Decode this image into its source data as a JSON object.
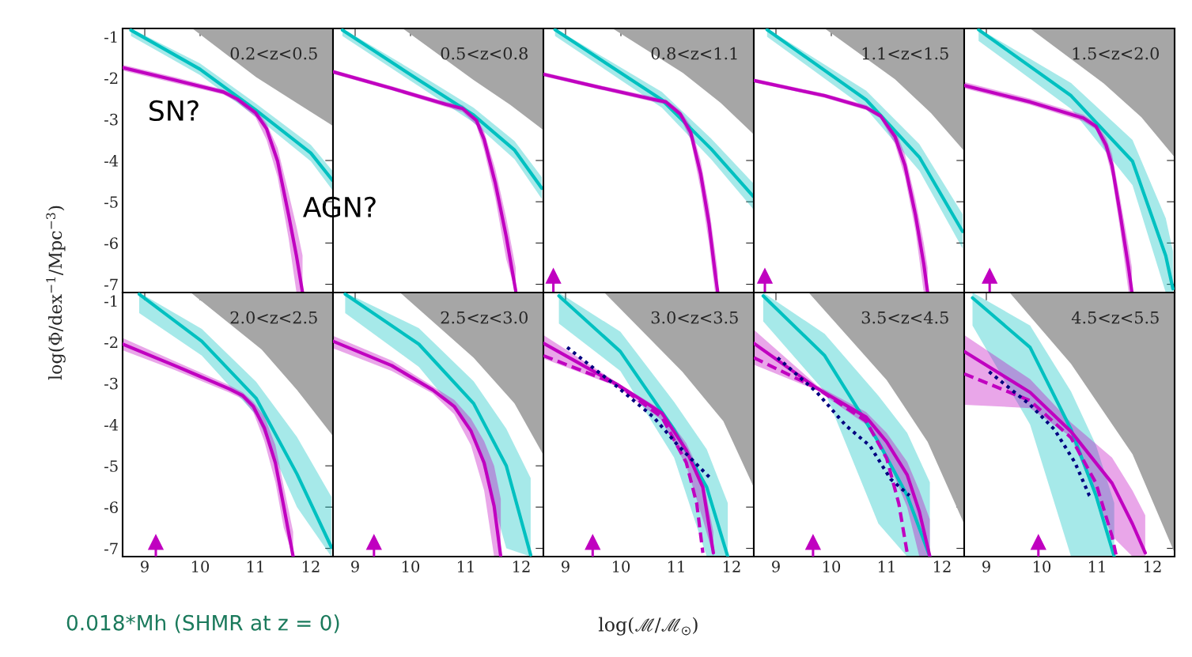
{
  "chart_data": [
    {
      "type": "line",
      "title": "0.2<z<0.5",
      "ylabel": "log(Φ/dex$^{−1}$/Mpc$^{−3}$)",
      "annotations": [
        "SN?",
        "AGN?",
        "0.018*Mh (SHMR at z = 0)"
      ],
      "xlim": [
        8.6,
        12.4
      ],
      "ylim": [
        -7.2,
        -0.8
      ],
      "xticks": [
        9,
        10,
        11,
        12
      ],
      "yticks": [
        -7,
        -6,
        -5,
        -4,
        -3,
        -2,
        -1
      ],
      "tick_labels": "y",
      "grid": false,
      "series": [
        {
          "type": "area",
          "color": "#a6a6a6",
          "x": [
            9.86,
            11.01,
            11.7,
            12.4
          ],
          "values": [
            -0.8,
            -1.98,
            -2.57,
            -3.16
          ]
        },
        {
          "type": "line",
          "color": "#00c0c0",
          "x": [
            8.75,
            10.0,
            11.0,
            12.0,
            12.39
          ],
          "values": [
            -0.84,
            -1.79,
            -2.77,
            -3.82,
            -4.48
          ],
          "lower": [
            -0.98,
            -1.93,
            -2.93,
            -4.02,
            -4.72
          ],
          "upper": [
            -0.8,
            -1.65,
            -2.61,
            -3.62,
            -4.25
          ]
        },
        {
          "type": "line",
          "color": "#c000c0",
          "x": [
            8.6,
            9.54,
            10.42,
            10.67,
            11.0,
            11.2,
            11.4,
            11.6,
            11.74,
            11.85
          ],
          "values": [
            -1.75,
            -2.05,
            -2.34,
            -2.51,
            -2.84,
            -3.23,
            -4.02,
            -5.33,
            -6.31,
            -7.2
          ],
          "lower": [
            -1.82,
            -2.12,
            -2.4,
            -2.58,
            -2.95,
            -3.5,
            -4.4,
            -5.9,
            -7.2,
            -7.2
          ],
          "upper": [
            -1.68,
            -1.98,
            -2.28,
            -2.44,
            -2.75,
            -3.1,
            -3.7,
            -4.8,
            -5.6,
            -6.3
          ]
        }
      ]
    },
    {
      "type": "line",
      "title": "0.5<z<0.8",
      "xlim": [
        8.6,
        12.4
      ],
      "ylim": [
        -7.2,
        -0.8
      ],
      "xticks": [
        9,
        10,
        11,
        12
      ],
      "yticks": [
        -7,
        -6,
        -5,
        -4,
        -3,
        -2,
        -1
      ],
      "tick_labels": false,
      "series": [
        {
          "type": "area",
          "color": "#a6a6a6",
          "x": [
            9.86,
            11.14,
            11.8,
            12.4
          ],
          "values": [
            -0.8,
            -2.05,
            -2.65,
            -3.26
          ]
        },
        {
          "type": "line",
          "color": "#00c0c0",
          "x": [
            8.77,
            10.15,
            11.14,
            11.88,
            12.37
          ],
          "values": [
            -0.84,
            -2.05,
            -2.9,
            -3.75,
            -4.67
          ],
          "lower": [
            -0.98,
            -2.2,
            -3.08,
            -3.97,
            -4.93
          ],
          "upper": [
            -0.8,
            -1.9,
            -2.72,
            -3.53,
            -4.4
          ]
        },
        {
          "type": "line",
          "color": "#c000c0",
          "x": [
            8.6,
            9.66,
            10.64,
            10.94,
            11.19,
            11.33,
            11.53,
            11.73,
            11.9
          ],
          "values": [
            -1.85,
            -2.25,
            -2.64,
            -2.74,
            -3.03,
            -3.49,
            -4.54,
            -5.85,
            -7.16
          ],
          "lower": [
            -1.9,
            -2.3,
            -2.7,
            -2.82,
            -3.15,
            -3.75,
            -4.9,
            -6.4,
            -7.2
          ],
          "upper": [
            -1.8,
            -2.2,
            -2.58,
            -2.66,
            -2.95,
            -3.3,
            -4.2,
            -5.4,
            -6.6
          ]
        }
      ]
    },
    {
      "type": "line",
      "title": "0.8<z<1.1",
      "xlim": [
        8.6,
        12.4
      ],
      "ylim": [
        -7.2,
        -0.8
      ],
      "xticks": [
        9,
        10,
        11,
        12
      ],
      "yticks": [
        -7,
        -6,
        -5,
        -4,
        -3,
        -2,
        -1
      ],
      "tick_labels": false,
      "series": [
        {
          "type": "area",
          "color": "#a6a6a6",
          "x": [
            9.85,
            11.12,
            11.8,
            12.4
          ],
          "values": [
            -0.8,
            -1.88,
            -2.6,
            -3.37
          ]
        },
        {
          "type": "line",
          "color": "#00c0c0",
          "x": [
            8.81,
            10.74,
            11.63,
            12.39
          ],
          "values": [
            -0.83,
            -2.53,
            -3.72,
            -4.87
          ],
          "lower": [
            -0.98,
            -2.72,
            -3.97,
            -5.18
          ],
          "upper": [
            -0.8,
            -2.34,
            -3.47,
            -4.55
          ]
        },
        {
          "type": "line",
          "color": "#c000c0",
          "x": [
            8.6,
            9.62,
            10.52,
            10.81,
            11.07,
            11.26,
            11.44,
            11.59,
            11.7,
            11.75
          ],
          "values": [
            -1.91,
            -2.23,
            -2.5,
            -2.58,
            -2.87,
            -3.32,
            -4.32,
            -5.52,
            -6.71,
            -7.2
          ],
          "lower": [
            -1.96,
            -2.28,
            -2.56,
            -2.64,
            -2.95,
            -3.5,
            -4.7,
            -6.0,
            -7.2,
            -7.2
          ],
          "upper": [
            -1.86,
            -2.18,
            -2.44,
            -2.52,
            -2.79,
            -3.15,
            -4.0,
            -5.1,
            -6.2,
            -6.7
          ]
        },
        {
          "type": "scatter",
          "color": "#c000c0",
          "marker": "triangle",
          "x": [
            8.78
          ],
          "values": [
            -6.8
          ],
          "errors": [
            [
              -7.2,
              -6.8
            ]
          ]
        }
      ]
    },
    {
      "type": "line",
      "title": "1.1<z<1.5",
      "xlim": [
        8.6,
        12.4
      ],
      "ylim": [
        -7.2,
        -0.8
      ],
      "xticks": [
        9,
        10,
        11,
        12
      ],
      "yticks": [
        -7,
        -6,
        -5,
        -4,
        -3,
        -2,
        -1
      ],
      "tick_labels": false,
      "series": [
        {
          "type": "area",
          "color": "#a6a6a6",
          "x": [
            9.88,
            11.15,
            11.8,
            12.4
          ],
          "values": [
            -0.8,
            -2.03,
            -2.85,
            -3.77
          ]
        },
        {
          "type": "line",
          "color": "#00c0c0",
          "x": [
            8.84,
            10.63,
            11.59,
            12.37
          ],
          "values": [
            -0.83,
            -2.53,
            -3.92,
            -5.72
          ],
          "lower": [
            -1.0,
            -2.75,
            -4.25,
            -6.13
          ],
          "upper": [
            -0.8,
            -2.31,
            -3.6,
            -5.3
          ]
        },
        {
          "type": "line",
          "color": "#c000c0",
          "x": [
            8.6,
            9.88,
            10.63,
            10.89,
            11.15,
            11.33,
            11.52,
            11.67,
            11.74
          ],
          "values": [
            -2.06,
            -2.43,
            -2.72,
            -2.92,
            -3.42,
            -4.12,
            -5.32,
            -6.51,
            -7.2
          ],
          "lower": [
            -2.11,
            -2.48,
            -2.78,
            -2.98,
            -3.6,
            -4.4,
            -5.7,
            -7.2,
            -7.2
          ],
          "upper": [
            -2.01,
            -2.38,
            -2.66,
            -2.86,
            -3.25,
            -3.85,
            -4.95,
            -6.0,
            -6.6
          ]
        },
        {
          "type": "scatter",
          "color": "#c000c0",
          "marker": "triangle",
          "x": [
            8.8
          ],
          "values": [
            -6.8
          ],
          "errors": [
            [
              -7.2,
              -6.8
            ]
          ]
        }
      ]
    },
    {
      "type": "line",
      "title": "1.5<z<2.0",
      "xlim": [
        8.6,
        12.4
      ],
      "ylim": [
        -7.2,
        -0.8
      ],
      "xticks": [
        9,
        10,
        11,
        12
      ],
      "yticks": [
        -7,
        -6,
        -5,
        -4,
        -3,
        -2,
        -1
      ],
      "tick_labels": false,
      "series": [
        {
          "type": "area",
          "color": "#a6a6a6",
          "x": [
            9.79,
            11.12,
            11.8,
            12.4
          ],
          "values": [
            -0.8,
            -2.13,
            -2.95,
            -3.92
          ]
        },
        {
          "type": "line",
          "color": "#00c0c0",
          "x": [
            8.86,
            10.53,
            11.64,
            12.24,
            12.37
          ],
          "values": [
            -0.83,
            -2.43,
            -4.02,
            -6.31,
            -7.11
          ],
          "lower": [
            -1.1,
            -2.75,
            -4.6,
            -7.2,
            -7.2
          ],
          "upper": [
            -0.8,
            -2.12,
            -3.5,
            -5.4,
            -6.2
          ]
        },
        {
          "type": "line",
          "color": "#c000c0",
          "x": [
            8.6,
            9.79,
            10.75,
            10.98,
            11.16,
            11.27,
            11.42,
            11.57,
            11.63
          ],
          "values": [
            -2.18,
            -2.58,
            -2.97,
            -3.17,
            -3.62,
            -4.12,
            -5.32,
            -6.61,
            -7.2
          ],
          "lower": [
            -2.25,
            -2.65,
            -3.05,
            -3.25,
            -3.8,
            -4.4,
            -5.7,
            -7.2,
            -7.2
          ],
          "upper": [
            -2.1,
            -2.5,
            -2.89,
            -3.09,
            -3.45,
            -3.85,
            -4.95,
            -6.1,
            -6.6
          ]
        },
        {
          "type": "scatter",
          "color": "#c000c0",
          "marker": "triangle",
          "x": [
            9.06
          ],
          "values": [
            -6.8
          ],
          "errors": [
            [
              -7.2,
              -6.8
            ]
          ]
        }
      ]
    },
    {
      "type": "line",
      "title": "2.0<z<2.5",
      "xlim": [
        8.6,
        12.4
      ],
      "ylim": [
        -7.2,
        -0.8
      ],
      "xticks": [
        9,
        10,
        11,
        12
      ],
      "yticks": [
        -7,
        -6,
        -5,
        -4,
        -3,
        -2,
        -1
      ],
      "series": [
        {
          "type": "area",
          "color": "#a6a6a6",
          "x": [
            9.83,
            11.11,
            11.75,
            12.4
          ],
          "values": [
            -0.8,
            -2.18,
            -3.16,
            -4.28
          ]
        },
        {
          "type": "line",
          "color": "#00c0c0",
          "x": [
            8.9,
            10.03,
            11.01,
            11.75,
            12.37
          ],
          "values": [
            -0.84,
            -1.98,
            -3.36,
            -5.2,
            -6.97
          ],
          "lower": [
            -1.3,
            -2.33,
            -3.77,
            -6.0,
            -7.2
          ],
          "upper": [
            -0.8,
            -1.68,
            -2.96,
            -4.3,
            -5.75
          ]
        },
        {
          "type": "line",
          "color": "#c000c0",
          "x": [
            8.6,
            9.54,
            10.52,
            10.77,
            10.96,
            11.16,
            11.36,
            11.51,
            11.68
          ],
          "values": [
            -2.05,
            -2.57,
            -3.13,
            -3.3,
            -3.56,
            -4.08,
            -4.93,
            -5.98,
            -7.2
          ],
          "lower": [
            -2.2,
            -2.68,
            -3.22,
            -3.38,
            -3.7,
            -4.4,
            -5.4,
            -6.5,
            -7.2
          ],
          "upper": [
            -1.9,
            -2.46,
            -3.04,
            -3.22,
            -3.45,
            -3.8,
            -4.5,
            -5.5,
            -6.6
          ]
        },
        {
          "type": "scatter",
          "color": "#c000c0",
          "marker": "triangle",
          "x": [
            9.2
          ],
          "values": [
            -6.85
          ],
          "errors": [
            [
              -7.2,
              -6.85
            ]
          ]
        }
      ]
    },
    {
      "type": "line",
      "title": "2.5<z<3.0",
      "xlim": [
        8.6,
        12.4
      ],
      "ylim": [
        -7.2,
        -0.8
      ],
      "xticks": [
        9,
        10,
        11,
        12
      ],
      "yticks": [
        -7,
        -6,
        -5,
        -4,
        -3,
        -2,
        -1
      ],
      "tick_labels": "x",
      "series": [
        {
          "type": "area",
          "color": "#a6a6a6",
          "x": [
            9.81,
            11.14,
            11.88,
            12.4
          ],
          "values": [
            -0.8,
            -2.38,
            -3.49,
            -4.74
          ]
        },
        {
          "type": "line",
          "color": "#00c0c0",
          "x": [
            8.82,
            10.15,
            11.14,
            11.73,
            12.17
          ],
          "values": [
            -0.84,
            -2.05,
            -3.49,
            -5.0,
            -7.16
          ],
          "lower": [
            -1.3,
            -2.6,
            -4.2,
            -7.0,
            -7.2
          ],
          "upper": [
            -0.8,
            -1.66,
            -2.95,
            -4.1,
            -5.3
          ]
        },
        {
          "type": "line",
          "color": "#c000c0",
          "x": [
            8.6,
            9.66,
            10.4,
            10.79,
            11.09,
            11.33,
            11.51,
            11.63
          ],
          "values": [
            -1.98,
            -2.57,
            -3.16,
            -3.56,
            -4.15,
            -4.93,
            -5.98,
            -7.2
          ],
          "lower": [
            -2.15,
            -2.7,
            -3.25,
            -3.75,
            -4.5,
            -5.6,
            -7.2,
            -7.2
          ],
          "upper": [
            -1.85,
            -2.45,
            -3.07,
            -3.4,
            -3.85,
            -4.4,
            -5.0,
            -5.8
          ]
        },
        {
          "type": "scatter",
          "color": "#c000c0",
          "marker": "triangle",
          "x": [
            9.34
          ],
          "values": [
            -6.85
          ],
          "errors": [
            [
              -7.2,
              -6.85
            ]
          ]
        }
      ]
    },
    {
      "type": "line",
      "title": "3.0<z<3.5",
      "xlabel": "log(ℳ/ℳ$_{☉}$)",
      "xlim": [
        8.6,
        12.4
      ],
      "ylim": [
        -7.2,
        -0.8
      ],
      "xticks": [
        9,
        10,
        11,
        12
      ],
      "yticks": [
        -7,
        -6,
        -5,
        -4,
        -3,
        -2,
        -1
      ],
      "tick_labels": "x",
      "series": [
        {
          "type": "area",
          "color": "#a6a6a6",
          "x": [
            9.7,
            11.11,
            11.85,
            12.4
          ],
          "values": [
            -0.8,
            -2.72,
            -3.92,
            -5.52
          ]
        },
        {
          "type": "line",
          "color": "#00c0c0",
          "x": [
            8.88,
            9.99,
            10.96,
            11.55,
            11.93
          ],
          "values": [
            -0.88,
            -2.23,
            -4.12,
            -5.52,
            -7.2
          ],
          "lower": [
            -1.55,
            -2.7,
            -4.8,
            -7.2,
            -7.2
          ],
          "upper": [
            -0.8,
            -1.75,
            -3.45,
            -4.6,
            -5.9
          ]
        },
        {
          "type": "line",
          "color": "#c000c0",
          "x": [
            8.6,
            9.92,
            10.74,
            11.18,
            11.48,
            11.67
          ],
          "values": [
            -2.03,
            -3.02,
            -3.72,
            -4.62,
            -5.52,
            -7.11
          ],
          "lower": [
            -2.4,
            -3.07,
            -3.9,
            -5.0,
            -6.3,
            -7.2
          ],
          "upper": [
            -1.83,
            -2.97,
            -3.65,
            -4.45,
            -5.3,
            -6.6
          ]
        },
        {
          "type": "line",
          "color": "#c000c0",
          "line_style": "dashed",
          "x": [
            8.6,
            9.92,
            10.74,
            11.18,
            11.37,
            11.48
          ],
          "values": [
            -2.33,
            -3.02,
            -3.82,
            -4.92,
            -5.92,
            -7.11
          ]
        },
        {
          "type": "line",
          "color": "#000080",
          "line_style": "dotted",
          "x": [
            9.03,
            9.92,
            10.59,
            11.04,
            11.63
          ],
          "values": [
            -2.13,
            -3.07,
            -3.82,
            -4.52,
            -5.32
          ]
        },
        {
          "type": "scatter",
          "color": "#c000c0",
          "marker": "triangle",
          "x": [
            9.49
          ],
          "values": [
            -6.85
          ],
          "errors": [
            [
              -7.2,
              -6.85
            ]
          ]
        }
      ]
    },
    {
      "type": "line",
      "title": "3.5<z<4.5",
      "xlim": [
        8.6,
        12.4
      ],
      "ylim": [
        -7.2,
        -0.8
      ],
      "xticks": [
        9,
        10,
        11,
        12
      ],
      "yticks": [
        -7,
        -6,
        -5,
        -4,
        -3,
        -2,
        -1
      ],
      "tick_labels": "x",
      "series": [
        {
          "type": "area",
          "color": "#a6a6a6",
          "x": [
            9.59,
            11.0,
            11.74,
            12.4
          ],
          "values": [
            -0.8,
            -2.92,
            -4.42,
            -6.41
          ]
        },
        {
          "type": "line",
          "color": "#00c0c0",
          "x": [
            8.77,
            9.88,
            10.85,
            11.37,
            11.78
          ],
          "values": [
            -0.88,
            -2.33,
            -4.42,
            -5.72,
            -7.2
          ],
          "lower": [
            -1.5,
            -3.2,
            -6.4,
            -7.2,
            -7.2
          ],
          "upper": [
            -0.8,
            -1.8,
            -3.3,
            -4.2,
            -5.4
          ]
        },
        {
          "type": "line",
          "color": "#c000c0",
          "x": [
            8.6,
            9.74,
            10.63,
            11.0,
            11.37,
            11.59,
            11.78
          ],
          "values": [
            -2.03,
            -3.12,
            -3.82,
            -4.42,
            -5.22,
            -6.11,
            -7.2
          ],
          "lower": [
            -2.55,
            -3.17,
            -4.0,
            -4.8,
            -6.0,
            -7.2,
            -7.2
          ],
          "upper": [
            -1.7,
            -3.05,
            -3.7,
            -4.2,
            -4.9,
            -5.6,
            -6.3
          ]
        },
        {
          "type": "line",
          "color": "#c000c0",
          "line_style": "dashed",
          "x": [
            8.6,
            9.74,
            10.63,
            11.0,
            11.22,
            11.37
          ],
          "values": [
            -2.38,
            -3.12,
            -3.92,
            -4.82,
            -5.92,
            -7.11
          ]
        },
        {
          "type": "line",
          "color": "#000080",
          "line_style": "dotted",
          "x": [
            9.03,
            9.74,
            10.26,
            10.7,
            11.07,
            11.41
          ],
          "values": [
            -2.38,
            -3.22,
            -4.02,
            -4.52,
            -5.32,
            -5.72
          ]
        },
        {
          "type": "scatter",
          "color": "#c000c0",
          "marker": "triangle",
          "x": [
            9.67
          ],
          "values": [
            -6.85
          ],
          "errors": [
            [
              -7.2,
              -6.85
            ]
          ]
        }
      ]
    },
    {
      "type": "line",
      "title": "4.5<z<5.5",
      "xlim": [
        8.6,
        12.4
      ],
      "ylim": [
        -7.2,
        -0.8
      ],
      "xticks": [
        9,
        10,
        11,
        12
      ],
      "yticks": [
        -7,
        -6,
        -5,
        -4,
        -3,
        -2,
        -1
      ],
      "tick_labels": "x",
      "series": [
        {
          "type": "area",
          "color": "#a6a6a6",
          "x": [
            9.42,
            10.53,
            11.64,
            12.4
          ],
          "values": [
            -0.8,
            -2.53,
            -4.72,
            -7.11
          ]
        },
        {
          "type": "line",
          "color": "#00c0c0",
          "x": [
            8.75,
            9.79,
            10.53,
            10.98,
            11.31
          ],
          "values": [
            -0.93,
            -2.13,
            -4.12,
            -5.72,
            -7.2
          ],
          "lower": [
            -1.6,
            -4.0,
            -7.2,
            -7.2,
            -7.2
          ],
          "upper": [
            -0.8,
            -1.6,
            -3.2,
            -4.5,
            -5.9
          ]
        },
        {
          "type": "line",
          "color": "#c000c0",
          "x": [
            8.6,
            9.79,
            10.53,
            11.27,
            11.64,
            11.87
          ],
          "values": [
            -2.23,
            -3.22,
            -4.17,
            -5.42,
            -6.41,
            -7.11
          ],
          "lower": [
            -3.52,
            -3.6,
            -4.3,
            -6.7,
            -7.2,
            -7.2
          ],
          "upper": [
            -1.83,
            -2.9,
            -3.95,
            -4.8,
            -5.6,
            -6.2
          ]
        },
        {
          "type": "line",
          "color": "#c000c0",
          "line_style": "dashed",
          "x": [
            8.6,
            9.79,
            10.53,
            10.98,
            11.27,
            11.35
          ],
          "values": [
            -2.77,
            -3.42,
            -4.32,
            -5.42,
            -6.71,
            -7.2
          ]
        },
        {
          "type": "line",
          "color": "#000080",
          "line_style": "dotted",
          "x": [
            9.05,
            9.79,
            10.23,
            10.6,
            10.86,
            10.9
          ],
          "values": [
            -2.72,
            -3.52,
            -4.12,
            -4.92,
            -5.72,
            -5.77
          ]
        },
        {
          "type": "scatter",
          "color": "#c000c0",
          "marker": "triangle",
          "x": [
            9.94
          ],
          "values": [
            -6.85
          ],
          "errors": [
            [
              -7.2,
              -6.85
            ]
          ]
        }
      ]
    }
  ]
}
